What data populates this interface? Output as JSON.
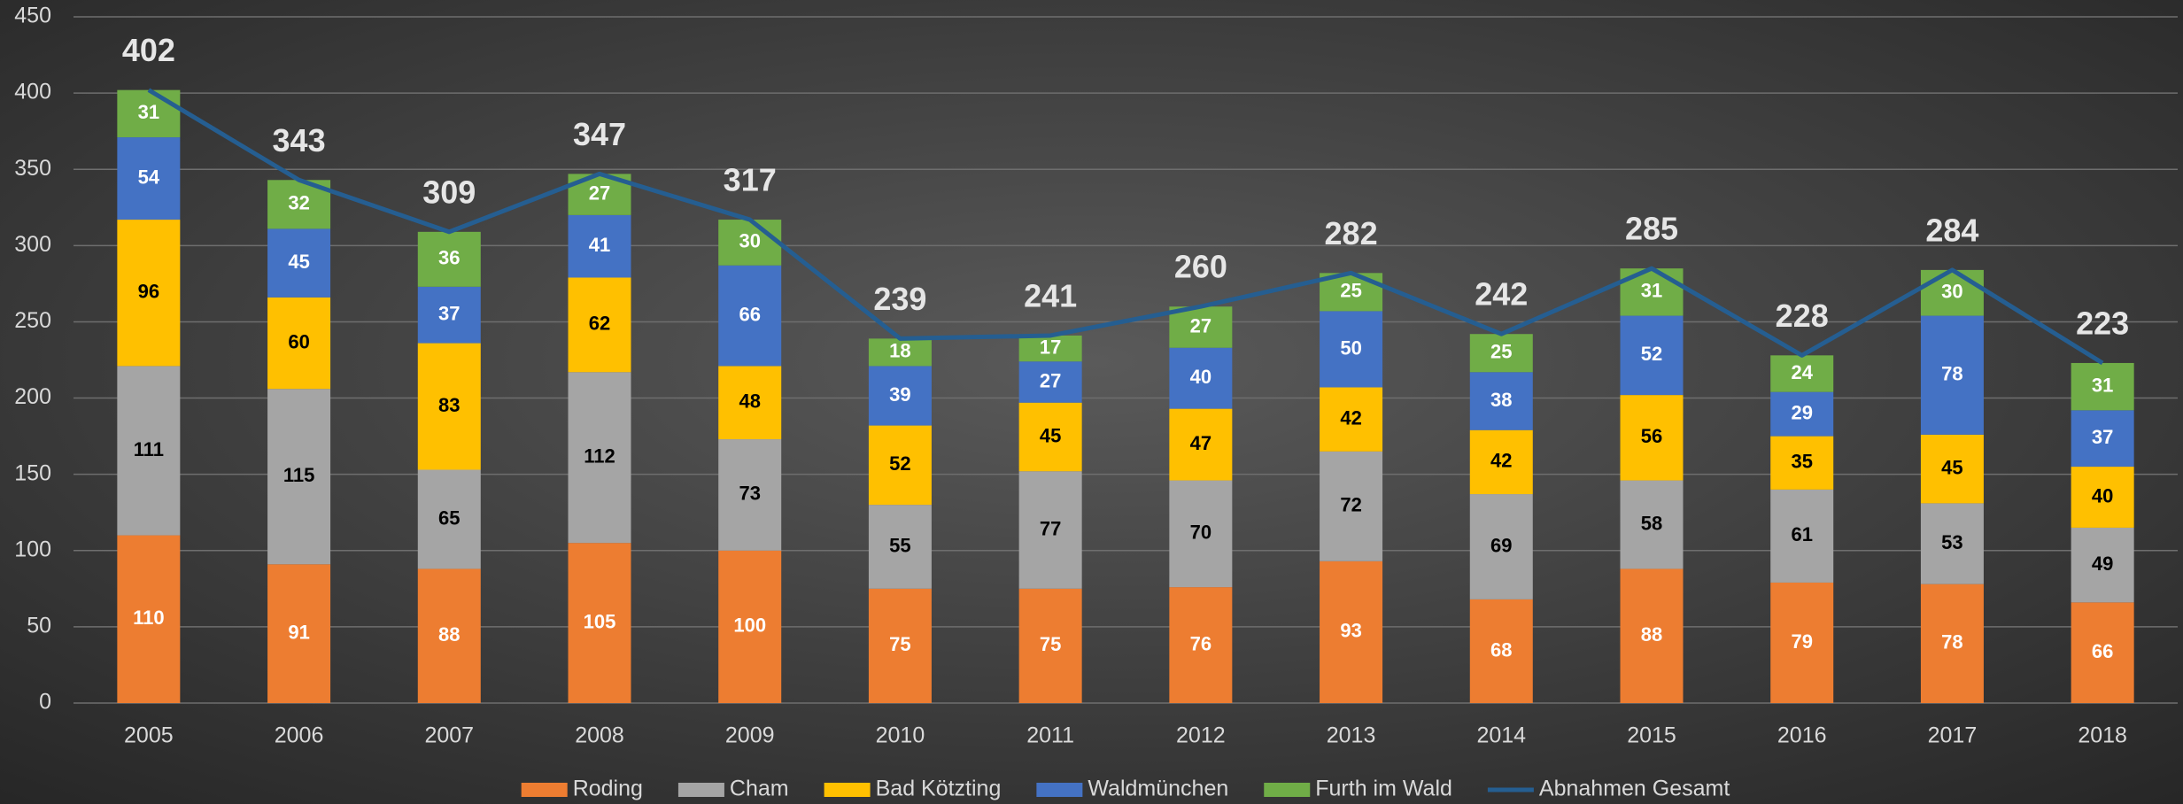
{
  "chart_data": {
    "type": "stacked-bar-line",
    "categories": [
      "2005",
      "2006",
      "2007",
      "2008",
      "2009",
      "2010",
      "2011",
      "2012",
      "2013",
      "2014",
      "2015",
      "2016",
      "2017",
      "2018"
    ],
    "series": [
      {
        "name": "Roding",
        "color": "#ed7d31",
        "label_color": "#ffffff",
        "values": [
          110,
          91,
          88,
          105,
          100,
          75,
          75,
          76,
          93,
          68,
          88,
          79,
          78,
          66
        ]
      },
      {
        "name": "Cham",
        "color": "#a5a5a5",
        "label_color": "#000000",
        "values": [
          111,
          115,
          65,
          112,
          73,
          55,
          77,
          70,
          72,
          69,
          58,
          61,
          53,
          49
        ]
      },
      {
        "name": "Bad Kötzting",
        "color": "#ffc000",
        "label_color": "#000000",
        "values": [
          96,
          60,
          83,
          62,
          48,
          52,
          45,
          47,
          42,
          42,
          56,
          35,
          45,
          40
        ]
      },
      {
        "name": "Waldmünchen",
        "color": "#4472c4",
        "label_color": "#ffffff",
        "values": [
          54,
          45,
          37,
          41,
          66,
          39,
          27,
          40,
          50,
          38,
          52,
          29,
          78,
          37
        ]
      },
      {
        "name": "Furth im Wald",
        "color": "#70ad47",
        "label_color": "#ffffff",
        "values": [
          31,
          32,
          36,
          27,
          30,
          18,
          17,
          27,
          25,
          25,
          31,
          24,
          30,
          31
        ]
      }
    ],
    "line": {
      "name": "Abnahmen Gesamt",
      "color": "#255e91",
      "values": [
        402,
        343,
        309,
        347,
        317,
        239,
        241,
        260,
        282,
        242,
        285,
        228,
        284,
        223
      ]
    },
    "ylim": [
      0,
      450
    ],
    "yticks": [
      0,
      50,
      100,
      150,
      200,
      250,
      300,
      350,
      400,
      450
    ],
    "grid": true,
    "legend": "bottom"
  }
}
